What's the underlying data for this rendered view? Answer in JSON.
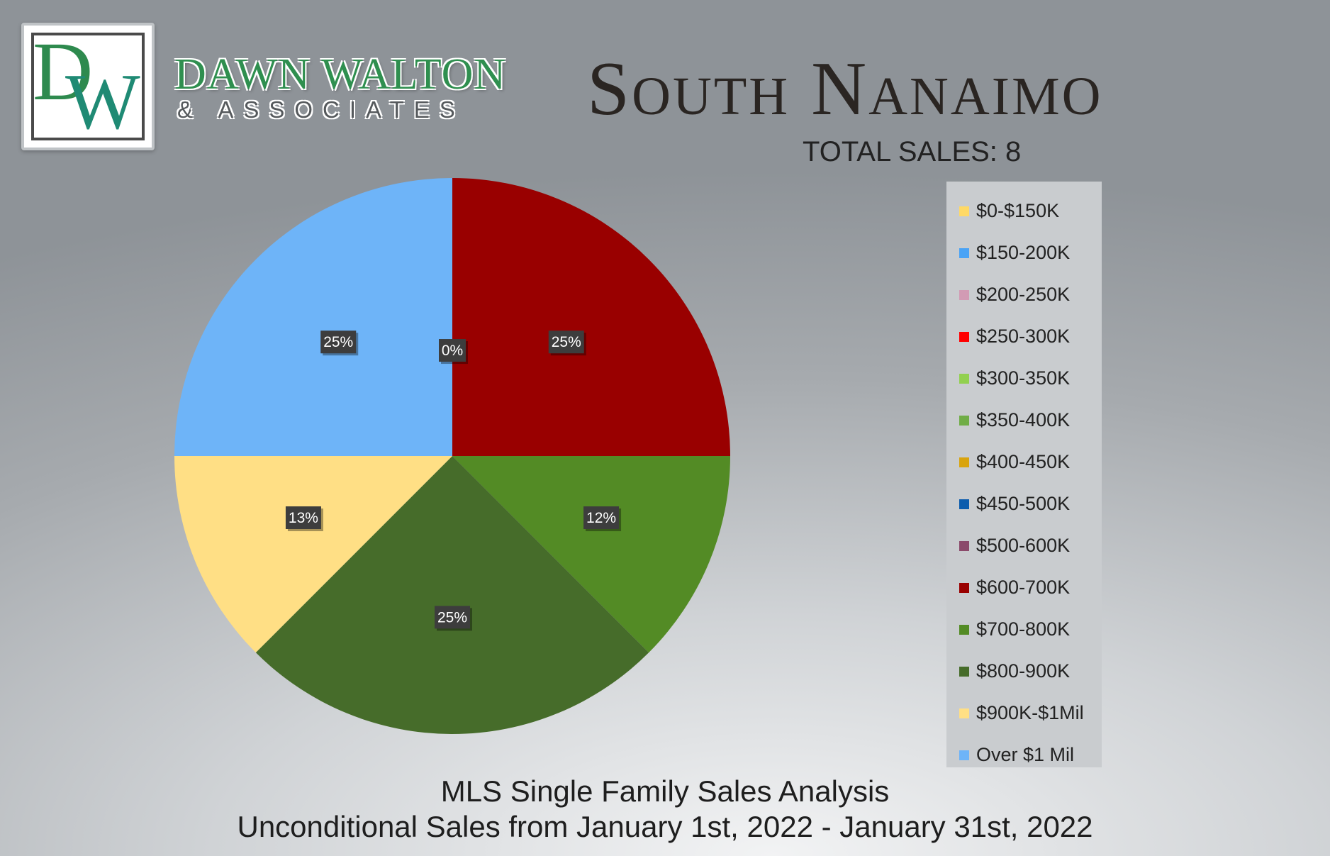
{
  "brand": {
    "logo_letters": "DW",
    "name": "DAWN WALTON",
    "subtitle": "& ASSOCIATES"
  },
  "header": {
    "title": "South Nanaimo",
    "total_sales": "TOTAL SALES: 8"
  },
  "footer": {
    "line1": "MLS Single Family Sales Analysis",
    "line2": "Unconditional Sales from January 1st, 2022 - January 31st, 2022"
  },
  "chart_data": {
    "type": "pie",
    "title": "",
    "legend_position": "right",
    "categories": [
      "$0-$150K",
      "$150-200K",
      "$200-250K",
      "$250-300K",
      "$300-350K",
      "$350-400K",
      "$400-450K",
      "$450-500K",
      "$500-600K",
      "$600-700K",
      "$700-800K",
      "$800-900K",
      "$900K-$1Mil",
      "Over $1 Mil"
    ],
    "values": [
      0,
      0,
      0,
      0,
      0,
      0,
      0,
      0,
      0,
      2,
      1,
      2,
      1,
      2
    ],
    "data_labels": [
      "",
      "",
      "",
      "",
      "",
      "",
      "",
      "",
      "0%",
      "25%",
      "12%",
      "25%",
      "13%",
      "25%"
    ],
    "colors": [
      "#ffd966",
      "#4aa3f5",
      "#d29bb4",
      "#ff0000",
      "#92d050",
      "#70ad47",
      "#d9a40e",
      "#0b5cad",
      "#8b4a6b",
      "#990000",
      "#538b25",
      "#466c2a",
      "#ffdf85",
      "#6eb4f8"
    ]
  }
}
